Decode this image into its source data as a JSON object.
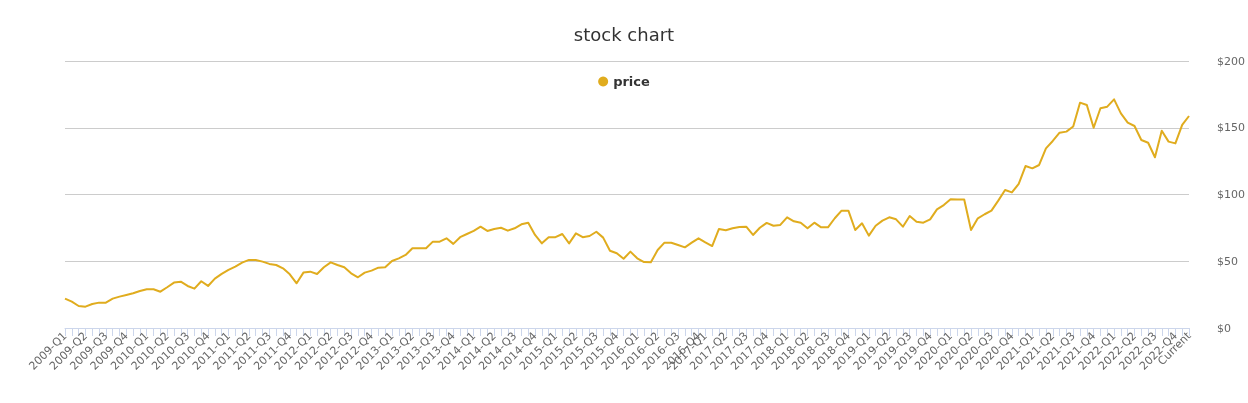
{
  "chart_data": {
    "type": "line",
    "title": "stock chart",
    "legend": "top",
    "grid": "y",
    "marker": "none",
    "line_style": "solid",
    "categories": [
      "2009-Q1",
      null,
      null,
      "2009-Q2",
      null,
      null,
      "2009-Q3",
      null,
      null,
      "2009-Q4",
      null,
      null,
      "2010-Q1",
      null,
      null,
      "2010-Q2",
      null,
      null,
      "2010-Q3",
      null,
      null,
      "2010-Q4",
      null,
      null,
      "2011-Q1",
      null,
      null,
      "2011-Q2",
      null,
      null,
      "2011-Q3",
      null,
      null,
      "2011-Q4",
      null,
      null,
      "2012-Q1",
      null,
      null,
      "2012-Q2",
      null,
      null,
      "2012-Q3",
      null,
      null,
      "2012-Q4",
      null,
      null,
      "2013-Q1",
      null,
      null,
      "2013-Q2",
      null,
      null,
      "2013-Q3",
      null,
      null,
      "2013-Q4",
      null,
      null,
      "2014-Q1",
      null,
      null,
      "2014-Q2",
      null,
      null,
      "2014-Q3",
      null,
      null,
      "2014-Q4",
      null,
      null,
      "2015-Q1",
      null,
      null,
      "2015-Q2",
      null,
      null,
      "2015-Q3",
      null,
      null,
      "2015-Q4",
      null,
      null,
      "2016-Q1",
      null,
      null,
      "2016-Q2",
      null,
      null,
      "2016-Q3",
      null,
      null,
      "2016-Q4",
      "2017-Q1",
      null,
      null,
      "2017-Q2",
      null,
      null,
      "2017-Q3",
      null,
      null,
      "2017-Q4",
      null,
      null,
      "2018-Q1",
      null,
      null,
      "2018-Q2",
      null,
      null,
      "2018-Q3",
      null,
      null,
      "2018-Q4",
      null,
      null,
      "2019-Q1",
      null,
      null,
      "2019-Q2",
      null,
      null,
      "2019-Q3",
      null,
      null,
      "2019-Q4",
      null,
      null,
      "2020-Q1",
      null,
      null,
      "2020-Q2",
      null,
      null,
      "2020-Q3",
      null,
      null,
      "2020-Q4",
      null,
      null,
      "2021-Q1",
      null,
      null,
      "2021-Q2",
      null,
      null,
      "2021-Q3",
      null,
      null,
      "2021-Q4",
      null,
      null,
      "2022-Q1",
      null,
      null,
      "2022-Q2",
      null,
      null,
      "2022-Q3",
      null,
      null,
      "2022-Q4",
      null,
      "Current"
    ],
    "series": [
      {
        "name": "price",
        "color": "#e0ac1e",
        "values": [
          22,
          19.7,
          16.5,
          16,
          18,
          19,
          19,
          22,
          23.5,
          24.7,
          26,
          27.7,
          29,
          29,
          27.2,
          30.5,
          34,
          34.7,
          31.5,
          29.5,
          35,
          31.5,
          37,
          40.5,
          43.5,
          46,
          49,
          51,
          51,
          49.7,
          48,
          47.2,
          44.7,
          40.2,
          33.5,
          41.5,
          42.2,
          40.5,
          45.5,
          49.2,
          47.2,
          45.5,
          41,
          38,
          41.5,
          43,
          45.2,
          45.5,
          50.2,
          52.2,
          54.7,
          59.7,
          59.7,
          59.7,
          64.7,
          64.7,
          67.2,
          63,
          68,
          70.4,
          72.7,
          75.9,
          72.7,
          74.2,
          75.1,
          72.9,
          74.7,
          77.7,
          78.9,
          69.7,
          63.4,
          68,
          68,
          70.4,
          63.4,
          70.9,
          68,
          68.9,
          72.1,
          67.7,
          57.9,
          56,
          51.9,
          57.2,
          52.2,
          49.4,
          49.2,
          58.4,
          63.9,
          63.9,
          62.2,
          60.4,
          63.9,
          67.2,
          64.2,
          61.4,
          74.2,
          73.2,
          74.7,
          75.7,
          75.9,
          69.7,
          75.1,
          78.7,
          76.6,
          77.2,
          82.9,
          79.9,
          78.9,
          74.7,
          78.9,
          75.4,
          75.4,
          82.2,
          87.9,
          87.9,
          73.4,
          78.4,
          69.2,
          76.6,
          80.4,
          82.9,
          81.4,
          75.9,
          83.9,
          79.6,
          78.9,
          81.4,
          88.9,
          92.1,
          96.4,
          96.2,
          96.2,
          73.4,
          82.2,
          85.2,
          87.9,
          95.4,
          103.4,
          101.6,
          107.9,
          121.3,
          119.6,
          122.1,
          134.6,
          140.1,
          146.3,
          147.1,
          150.9,
          168.8,
          167,
          150,
          164.6,
          165.8,
          171.3,
          160.8,
          153.8,
          151.3,
          140.8,
          138.8,
          127.9,
          147.8,
          139.6,
          138.3,
          152.1,
          158.8
        ]
      }
    ],
    "ylim": [
      0,
      200
    ],
    "yticks": [
      {
        "value": 0,
        "label": "$0"
      },
      {
        "value": 50,
        "label": "$50"
      },
      {
        "value": 100,
        "label": "$100"
      },
      {
        "value": 150,
        "label": "$150"
      },
      {
        "value": 200,
        "label": "$200"
      }
    ]
  }
}
